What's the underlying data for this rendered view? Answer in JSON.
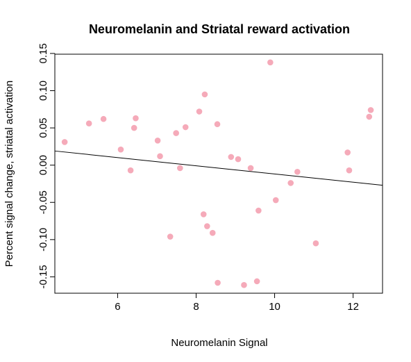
{
  "chart_data": {
    "type": "scatter",
    "title": "Neuromelanin and Striatal reward activation",
    "xlabel": "Neuromelanin Signal",
    "ylabel": "Percent signal change, striatal activation",
    "xlim": [
      4.4,
      12.75
    ],
    "ylim": [
      -0.172,
      0.149
    ],
    "xticks": [
      "6",
      "8",
      "10",
      "12"
    ],
    "xtick_values": [
      6,
      8,
      10,
      12
    ],
    "yticks": [
      "-0.15",
      "-0.10",
      "-0.05",
      "0.00",
      "0.05",
      "0.10",
      "0.15"
    ],
    "ytick_values": [
      -0.15,
      -0.1,
      -0.05,
      0.0,
      0.05,
      0.1,
      0.15
    ],
    "point_color": "#f5aab9",
    "line_color": "#000000",
    "grid": false,
    "points": [
      {
        "x": 4.65,
        "y": 0.031
      },
      {
        "x": 5.27,
        "y": 0.056
      },
      {
        "x": 5.64,
        "y": 0.062
      },
      {
        "x": 6.08,
        "y": 0.021
      },
      {
        "x": 6.33,
        "y": -0.007
      },
      {
        "x": 6.42,
        "y": 0.05
      },
      {
        "x": 6.46,
        "y": 0.063
      },
      {
        "x": 7.02,
        "y": 0.033
      },
      {
        "x": 7.08,
        "y": 0.012
      },
      {
        "x": 7.34,
        "y": -0.096
      },
      {
        "x": 7.49,
        "y": 0.043
      },
      {
        "x": 7.59,
        "y": -0.004
      },
      {
        "x": 7.73,
        "y": 0.051
      },
      {
        "x": 8.08,
        "y": 0.072
      },
      {
        "x": 8.19,
        "y": -0.066
      },
      {
        "x": 8.22,
        "y": 0.095
      },
      {
        "x": 8.28,
        "y": -0.082
      },
      {
        "x": 8.42,
        "y": -0.091
      },
      {
        "x": 8.54,
        "y": 0.055
      },
      {
        "x": 8.55,
        "y": -0.158
      },
      {
        "x": 8.89,
        "y": 0.011
      },
      {
        "x": 9.07,
        "y": 0.008
      },
      {
        "x": 9.22,
        "y": -0.161
      },
      {
        "x": 9.39,
        "y": -0.004
      },
      {
        "x": 9.55,
        "y": -0.156
      },
      {
        "x": 9.59,
        "y": -0.061
      },
      {
        "x": 9.89,
        "y": 0.138
      },
      {
        "x": 10.03,
        "y": -0.047
      },
      {
        "x": 10.41,
        "y": -0.024
      },
      {
        "x": 10.58,
        "y": -0.009
      },
      {
        "x": 11.05,
        "y": -0.105
      },
      {
        "x": 11.86,
        "y": 0.017
      },
      {
        "x": 11.9,
        "y": -0.007
      },
      {
        "x": 12.41,
        "y": 0.065
      },
      {
        "x": 12.45,
        "y": 0.074
      }
    ],
    "regression_line": {
      "x": [
        4.4,
        12.75
      ],
      "y": [
        0.019,
        -0.027
      ]
    }
  }
}
